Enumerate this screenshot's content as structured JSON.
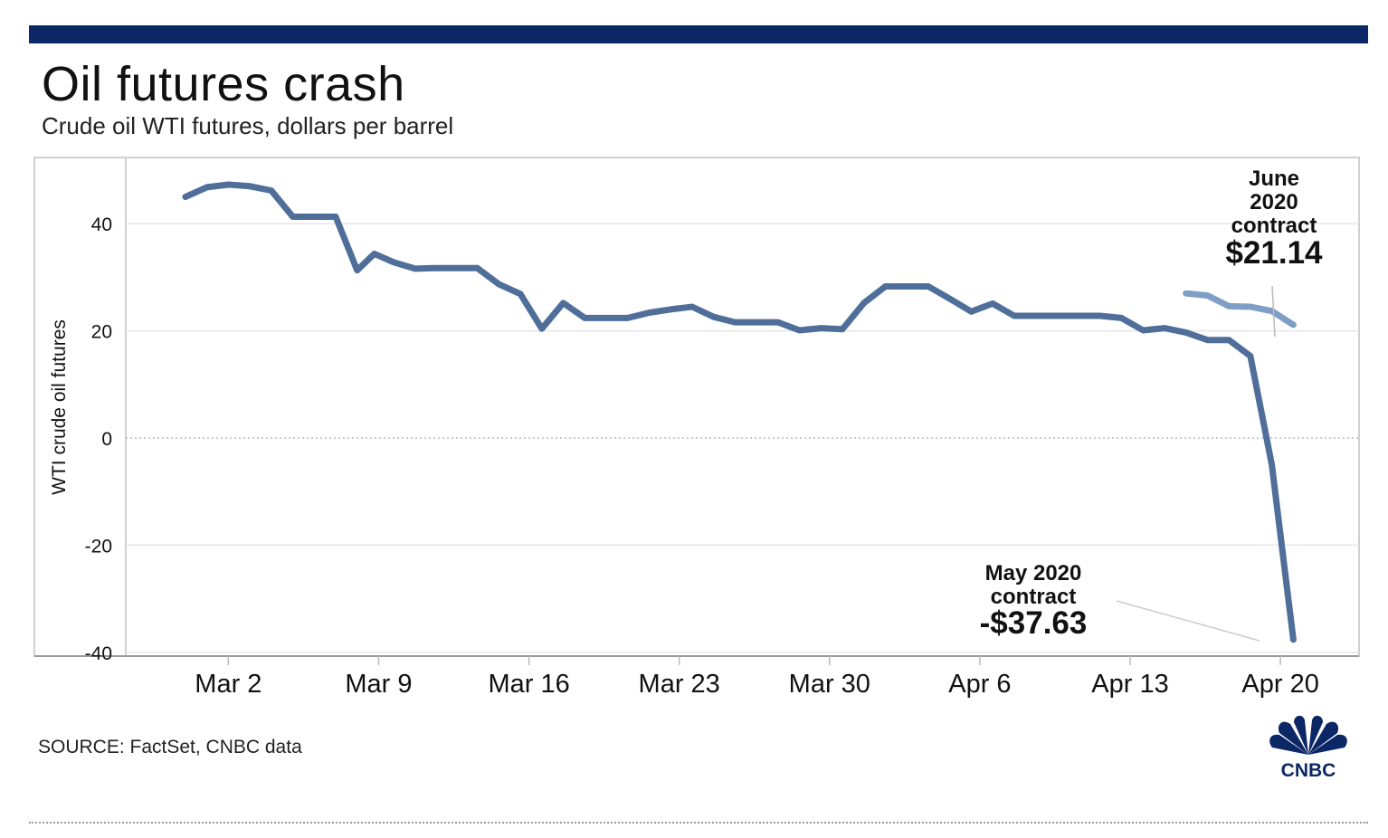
{
  "header": {
    "title": "Oil futures crash",
    "subtitle": "Crude oil WTI futures, dollars per barrel"
  },
  "footer": {
    "source": "SOURCE: FactSet, CNBC data",
    "logo_text": "CNBC"
  },
  "colors": {
    "topbar": "#0b2766",
    "may_line": "#4f6f9a",
    "june_line": "#7f9ec6",
    "grid": "#e6e6e6",
    "zero_line": "#bbbbbb"
  },
  "chart_data": {
    "type": "line",
    "title": "Oil futures crash",
    "subtitle": "Crude oil WTI futures, dollars per barrel",
    "xlabel": "",
    "ylabel": "WTI crude oil futures",
    "ylim": [
      -42,
      51
    ],
    "xlim": [
      "Feb 28",
      "Apr 21"
    ],
    "y_ticks": [
      40,
      20,
      0,
      -20,
      -40
    ],
    "x_ticks": [
      {
        "day": 2,
        "label": "Mar 2"
      },
      {
        "day": 9,
        "label": "Mar 9"
      },
      {
        "day": 16,
        "label": "Mar 16"
      },
      {
        "day": 23,
        "label": "Mar 23"
      },
      {
        "day": 30,
        "label": "Mar 30"
      },
      {
        "day": 37,
        "label": "Apr 6"
      },
      {
        "day": 44,
        "label": "Apr 13"
      },
      {
        "day": 51,
        "label": "Apr 20"
      }
    ],
    "x_units": "days since Mar 1, 2020",
    "series": [
      {
        "name": "May 2020 contract",
        "x": [
          0,
          1,
          2,
          3,
          4,
          5,
          6,
          7,
          8,
          8.8,
          9.7,
          10.7,
          11.6,
          12.6,
          13.6,
          14.6,
          15.6,
          16.6,
          17.6,
          18.6,
          19.6,
          20.6,
          21.6,
          22.6,
          23.6,
          24.6,
          25.6,
          26.6,
          27.6,
          28.6,
          29.6,
          30.6,
          31.6,
          32.6,
          33.6,
          34.6,
          35.6,
          36.6,
          37.6,
          38.6,
          39.6,
          40.6,
          41.6,
          42.6,
          43.6,
          44.6,
          45.6,
          46.6,
          47.6,
          48.6,
          49.6,
          50.6,
          51.6
        ],
        "values": [
          45,
          46.8,
          47.3,
          47,
          46.2,
          41.3,
          41.3,
          41.3,
          31.3,
          34.4,
          32.8,
          31.6,
          31.7,
          31.7,
          31.7,
          28.7,
          26.9,
          20.4,
          25.2,
          22.4,
          22.4,
          22.4,
          23.4,
          24,
          24.5,
          22.6,
          21.6,
          21.6,
          21.6,
          20.1,
          20.5,
          20.3,
          25.2,
          28.3,
          28.3,
          28.3,
          26,
          23.6,
          25.1,
          22.8,
          22.8,
          22.8,
          22.8,
          22.8,
          22.4,
          20.1,
          20.5,
          19.7,
          18.3,
          18.3,
          15.3,
          -5,
          -37.63
        ]
      },
      {
        "name": "June 2020 contract",
        "x": [
          46.6,
          47.6,
          48.6,
          49.6,
          50.6,
          51.6
        ],
        "values": [
          27,
          26.6,
          24.6,
          24.5,
          23.7,
          21.14
        ]
      }
    ],
    "annotations": [
      {
        "series": "June 2020 contract",
        "text": [
          "June",
          "2020",
          "contract"
        ],
        "value_text": "$21.14",
        "value": 21.14
      },
      {
        "series": "May 2020 contract",
        "text": [
          "May 2020",
          "contract"
        ],
        "value_text": "-$37.63",
        "value": -37.63
      }
    ]
  }
}
